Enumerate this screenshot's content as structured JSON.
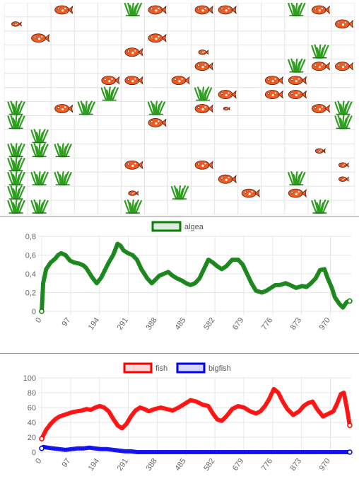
{
  "simulation": {
    "rows": 15,
    "cols": 15,
    "cells": [
      {
        "r": 0,
        "c": 2,
        "t": "fish"
      },
      {
        "r": 0,
        "c": 5,
        "t": "algae"
      },
      {
        "r": 0,
        "c": 6,
        "t": "fish"
      },
      {
        "r": 0,
        "c": 8,
        "t": "fish"
      },
      {
        "r": 0,
        "c": 9,
        "t": "fish"
      },
      {
        "r": 0,
        "c": 12,
        "t": "algae"
      },
      {
        "r": 0,
        "c": 13,
        "t": "fish"
      },
      {
        "r": 1,
        "c": 0,
        "t": "smallfish"
      },
      {
        "r": 1,
        "c": 14,
        "t": "fish"
      },
      {
        "r": 2,
        "c": 1,
        "t": "fish"
      },
      {
        "r": 2,
        "c": 6,
        "t": "fish"
      },
      {
        "r": 3,
        "c": 5,
        "t": "fish"
      },
      {
        "r": 3,
        "c": 8,
        "t": "smallfish"
      },
      {
        "r": 3,
        "c": 13,
        "t": "algae"
      },
      {
        "r": 4,
        "c": 8,
        "t": "fish"
      },
      {
        "r": 4,
        "c": 12,
        "t": "algae"
      },
      {
        "r": 4,
        "c": 13,
        "t": "fish"
      },
      {
        "r": 4,
        "c": 14,
        "t": "fish"
      },
      {
        "r": 5,
        "c": 4,
        "t": "fish"
      },
      {
        "r": 5,
        "c": 5,
        "t": "fish"
      },
      {
        "r": 5,
        "c": 7,
        "t": "fish"
      },
      {
        "r": 5,
        "c": 11,
        "t": "fish"
      },
      {
        "r": 5,
        "c": 12,
        "t": "fish"
      },
      {
        "r": 6,
        "c": 4,
        "t": "algae"
      },
      {
        "r": 6,
        "c": 8,
        "t": "algae"
      },
      {
        "r": 6,
        "c": 9,
        "t": "fish"
      },
      {
        "r": 6,
        "c": 11,
        "t": "fish"
      },
      {
        "r": 6,
        "c": 12,
        "t": "fish"
      },
      {
        "r": 7,
        "c": 0,
        "t": "algae"
      },
      {
        "r": 7,
        "c": 2,
        "t": "fish"
      },
      {
        "r": 7,
        "c": 3,
        "t": "algae"
      },
      {
        "r": 7,
        "c": 6,
        "t": "algae"
      },
      {
        "r": 7,
        "c": 8,
        "t": "fish"
      },
      {
        "r": 7,
        "c": 9,
        "t": "tinyfish"
      },
      {
        "r": 7,
        "c": 13,
        "t": "fish"
      },
      {
        "r": 7,
        "c": 14,
        "t": "algae"
      },
      {
        "r": 8,
        "c": 0,
        "t": "algae"
      },
      {
        "r": 8,
        "c": 6,
        "t": "fish"
      },
      {
        "r": 8,
        "c": 14,
        "t": "algae"
      },
      {
        "r": 9,
        "c": 1,
        "t": "algae"
      },
      {
        "r": 10,
        "c": 0,
        "t": "algae"
      },
      {
        "r": 10,
        "c": 1,
        "t": "algae"
      },
      {
        "r": 10,
        "c": 2,
        "t": "algae"
      },
      {
        "r": 10,
        "c": 13,
        "t": "smallfish"
      },
      {
        "r": 11,
        "c": 0,
        "t": "algae"
      },
      {
        "r": 11,
        "c": 5,
        "t": "fish"
      },
      {
        "r": 11,
        "c": 8,
        "t": "fish"
      },
      {
        "r": 11,
        "c": 14,
        "t": "smallfish"
      },
      {
        "r": 12,
        "c": 0,
        "t": "algae"
      },
      {
        "r": 12,
        "c": 1,
        "t": "algae"
      },
      {
        "r": 12,
        "c": 2,
        "t": "algae"
      },
      {
        "r": 12,
        "c": 9,
        "t": "fish"
      },
      {
        "r": 12,
        "c": 12,
        "t": "algae"
      },
      {
        "r": 12,
        "c": 14,
        "t": "smallfish"
      },
      {
        "r": 13,
        "c": 0,
        "t": "algae"
      },
      {
        "r": 13,
        "c": 5,
        "t": "smallfish"
      },
      {
        "r": 13,
        "c": 7,
        "t": "algae"
      },
      {
        "r": 13,
        "c": 10,
        "t": "fish"
      },
      {
        "r": 13,
        "c": 12,
        "t": "fish"
      },
      {
        "r": 14,
        "c": 0,
        "t": "algae"
      },
      {
        "r": 14,
        "c": 1,
        "t": "algae"
      },
      {
        "r": 14,
        "c": 5,
        "t": "algae"
      },
      {
        "r": 14,
        "c": 13,
        "t": "algae"
      }
    ]
  },
  "colors": {
    "fish": "#f05a23",
    "algae_line": "#0a7d0a",
    "fish_line": "#ff0000",
    "bigfish_line": "#0000ee",
    "grid": "#e4e4e4"
  },
  "chart_data": [
    {
      "type": "line",
      "x_ticks": [
        "0",
        "97",
        "194",
        "291",
        "388",
        "485",
        "582",
        "679",
        "776",
        "873",
        "970"
      ],
      "x_range": [
        0,
        1040
      ],
      "ylim": [
        0,
        0.8
      ],
      "y_ticks": [
        "0",
        "0,2",
        "0,4",
        "0,6",
        "0,8"
      ],
      "legend_position": "top-center",
      "series": [
        {
          "name": "algea",
          "color": "#0a7d0a",
          "x": [
            0,
            5,
            15,
            30,
            45,
            55,
            65,
            80,
            95,
            110,
            125,
            140,
            150,
            170,
            185,
            200,
            225,
            240,
            255,
            265,
            275,
            290,
            305,
            320,
            335,
            355,
            370,
            380,
            395,
            410,
            425,
            440,
            455,
            470,
            485,
            500,
            515,
            530,
            545,
            560,
            575,
            590,
            605,
            620,
            640,
            660,
            675,
            690,
            705,
            720,
            740,
            755,
            770,
            785,
            800,
            820,
            835,
            855,
            875,
            890,
            905,
            920,
            935,
            950,
            960,
            975,
            985,
            1000,
            1012,
            1025,
            1035
          ],
          "y": [
            0,
            0.3,
            0.45,
            0.52,
            0.56,
            0.6,
            0.62,
            0.6,
            0.54,
            0.52,
            0.51,
            0.49,
            0.46,
            0.36,
            0.3,
            0.36,
            0.52,
            0.6,
            0.72,
            0.7,
            0.65,
            0.62,
            0.6,
            0.55,
            0.45,
            0.35,
            0.3,
            0.33,
            0.38,
            0.4,
            0.42,
            0.38,
            0.35,
            0.33,
            0.3,
            0.28,
            0.3,
            0.35,
            0.45,
            0.55,
            0.52,
            0.48,
            0.45,
            0.48,
            0.55,
            0.55,
            0.5,
            0.4,
            0.3,
            0.22,
            0.2,
            0.22,
            0.25,
            0.28,
            0.28,
            0.3,
            0.28,
            0.25,
            0.27,
            0.26,
            0.3,
            0.35,
            0.44,
            0.45,
            0.36,
            0.25,
            0.15,
            0.08,
            0.04,
            0.1,
            0.11
          ]
        }
      ]
    },
    {
      "type": "line",
      "x_ticks": [
        "0",
        "97",
        "194",
        "291",
        "388",
        "485",
        "582",
        "679",
        "776",
        "873",
        "970"
      ],
      "x_range": [
        0,
        1040
      ],
      "ylim": [
        0,
        100
      ],
      "y_ticks": [
        "0",
        "20",
        "40",
        "60",
        "80",
        "100"
      ],
      "legend_position": "top-center",
      "series": [
        {
          "name": "fish",
          "color": "#ff0000",
          "x": [
            0,
            5,
            15,
            30,
            45,
            60,
            75,
            90,
            105,
            120,
            135,
            150,
            165,
            180,
            195,
            210,
            225,
            240,
            255,
            270,
            285,
            300,
            315,
            330,
            345,
            360,
            380,
            400,
            420,
            440,
            460,
            480,
            500,
            520,
            540,
            560,
            575,
            590,
            605,
            620,
            640,
            660,
            680,
            700,
            720,
            735,
            750,
            765,
            780,
            795,
            810,
            825,
            845,
            865,
            880,
            895,
            910,
            925,
            945,
            965,
            980,
            992,
            1005,
            1015,
            1025,
            1035
          ],
          "y": [
            18,
            22,
            30,
            38,
            44,
            48,
            50,
            52,
            54,
            55,
            56,
            58,
            57,
            60,
            62,
            60,
            55,
            45,
            36,
            32,
            38,
            48,
            56,
            60,
            58,
            55,
            58,
            60,
            58,
            56,
            60,
            65,
            70,
            68,
            64,
            62,
            52,
            44,
            42,
            48,
            58,
            62,
            60,
            55,
            52,
            55,
            62,
            72,
            85,
            80,
            68,
            58,
            50,
            55,
            62,
            66,
            68,
            58,
            48,
            52,
            55,
            65,
            78,
            80,
            60,
            36
          ]
        },
        {
          "name": "bigfish",
          "color": "#0000ee",
          "x": [
            0,
            5,
            20,
            40,
            60,
            80,
            100,
            120,
            140,
            160,
            180,
            200,
            220,
            240,
            260,
            280,
            300,
            320,
            340,
            360,
            400,
            500,
            600,
            700,
            800,
            900,
            1000,
            1035
          ],
          "y": [
            5,
            7,
            6,
            5,
            4,
            3,
            4,
            5,
            5,
            6,
            5,
            4,
            4,
            3,
            2,
            1,
            1,
            0,
            0,
            0,
            0,
            0,
            0,
            0,
            0,
            0,
            0,
            0
          ]
        }
      ]
    }
  ]
}
